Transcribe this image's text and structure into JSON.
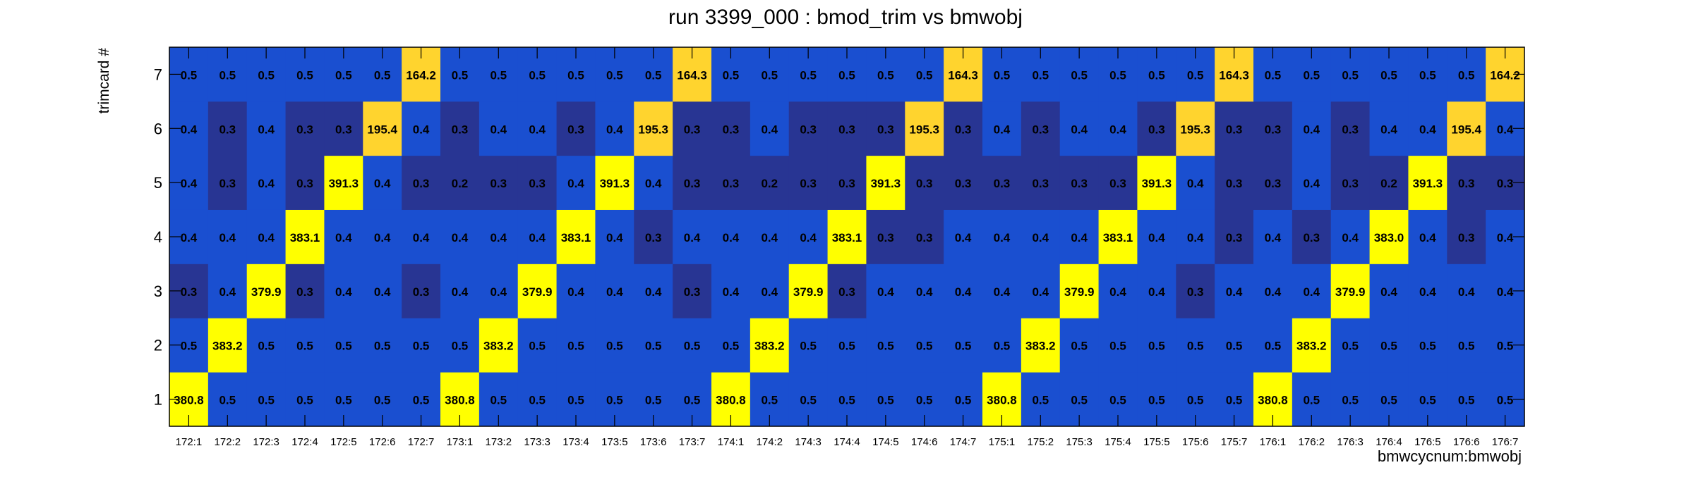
{
  "chart_data": {
    "type": "heatmap",
    "title": "run 3399_000 : bmod_trim vs bmwobj",
    "xlabel": "bmwcycnum:bmwobj",
    "ylabel": "trimcard #",
    "x_categories": [
      "172:1",
      "172:2",
      "172:3",
      "172:4",
      "172:5",
      "172:6",
      "172:7",
      "173:1",
      "173:2",
      "173:3",
      "173:4",
      "173:5",
      "173:6",
      "173:7",
      "174:1",
      "174:2",
      "174:3",
      "174:4",
      "174:5",
      "174:6",
      "174:7",
      "175:1",
      "175:2",
      "175:3",
      "175:4",
      "175:5",
      "175:6",
      "175:7",
      "176:1",
      "176:2",
      "176:3",
      "176:4",
      "176:5",
      "176:6",
      "176:7"
    ],
    "y_categories": [
      "1",
      "2",
      "3",
      "4",
      "5",
      "6",
      "7"
    ],
    "values": [
      [
        "380.8",
        "0.5",
        "0.5",
        "0.5",
        "0.5",
        "0.5",
        "0.5",
        "380.8",
        "0.5",
        "0.5",
        "0.5",
        "0.5",
        "0.5",
        "0.5",
        "380.8",
        "0.5",
        "0.5",
        "0.5",
        "0.5",
        "0.5",
        "0.5",
        "380.8",
        "0.5",
        "0.5",
        "0.5",
        "0.5",
        "0.5",
        "0.5",
        "380.8",
        "0.5",
        "0.5",
        "0.5",
        "0.5",
        "0.5",
        "0.5"
      ],
      [
        "0.5",
        "383.2",
        "0.5",
        "0.5",
        "0.5",
        "0.5",
        "0.5",
        "0.5",
        "383.2",
        "0.5",
        "0.5",
        "0.5",
        "0.5",
        "0.5",
        "0.5",
        "383.2",
        "0.5",
        "0.5",
        "0.5",
        "0.5",
        "0.5",
        "0.5",
        "383.2",
        "0.5",
        "0.5",
        "0.5",
        "0.5",
        "0.5",
        "0.5",
        "383.2",
        "0.5",
        "0.5",
        "0.5",
        "0.5",
        "0.5"
      ],
      [
        "0.3",
        "0.4",
        "379.9",
        "0.3",
        "0.4",
        "0.4",
        "0.3",
        "0.4",
        "0.4",
        "379.9",
        "0.4",
        "0.4",
        "0.4",
        "0.3",
        "0.4",
        "0.4",
        "379.9",
        "0.3",
        "0.4",
        "0.4",
        "0.4",
        "0.4",
        "0.4",
        "379.9",
        "0.4",
        "0.4",
        "0.3",
        "0.4",
        "0.4",
        "0.4",
        "379.9",
        "0.4",
        "0.4",
        "0.4",
        "0.4"
      ],
      [
        "0.4",
        "0.4",
        "0.4",
        "383.1",
        "0.4",
        "0.4",
        "0.4",
        "0.4",
        "0.4",
        "0.4",
        "383.1",
        "0.4",
        "0.3",
        "0.4",
        "0.4",
        "0.4",
        "0.4",
        "383.1",
        "0.3",
        "0.3",
        "0.4",
        "0.4",
        "0.4",
        "0.4",
        "383.1",
        "0.4",
        "0.4",
        "0.3",
        "0.4",
        "0.3",
        "0.4",
        "383.0",
        "0.4",
        "0.3",
        "0.4"
      ],
      [
        "0.4",
        "0.3",
        "0.4",
        "0.3",
        "391.3",
        "0.4",
        "0.3",
        "0.2",
        "0.3",
        "0.3",
        "0.4",
        "391.3",
        "0.4",
        "0.3",
        "0.3",
        "0.2",
        "0.3",
        "0.3",
        "391.3",
        "0.3",
        "0.3",
        "0.3",
        "0.3",
        "0.3",
        "0.3",
        "391.3",
        "0.4",
        "0.3",
        "0.3",
        "0.4",
        "0.3",
        "0.2",
        "391.3",
        "0.3",
        "0.3"
      ],
      [
        "0.4",
        "0.3",
        "0.4",
        "0.3",
        "0.3",
        "195.4",
        "0.4",
        "0.3",
        "0.4",
        "0.4",
        "0.3",
        "0.4",
        "195.3",
        "0.3",
        "0.3",
        "0.4",
        "0.3",
        "0.3",
        "0.3",
        "195.3",
        "0.3",
        "0.4",
        "0.3",
        "0.4",
        "0.4",
        "0.3",
        "195.3",
        "0.3",
        "0.3",
        "0.4",
        "0.3",
        "0.4",
        "0.4",
        "195.4",
        "0.4"
      ],
      [
        "0.5",
        "0.5",
        "0.5",
        "0.5",
        "0.5",
        "0.5",
        "164.2",
        "0.5",
        "0.5",
        "0.5",
        "0.5",
        "0.5",
        "0.5",
        "164.3",
        "0.5",
        "0.5",
        "0.5",
        "0.5",
        "0.5",
        "0.5",
        "164.3",
        "0.5",
        "0.5",
        "0.5",
        "0.5",
        "0.5",
        "0.5",
        "164.3",
        "0.5",
        "0.5",
        "0.5",
        "0.5",
        "0.5",
        "0.5",
        "164.2"
      ]
    ],
    "colors": {
      "low": "#283593",
      "mid": "#1a4fd0",
      "high": "#ffff00",
      "medium_high": "#ffd42e",
      "frame": "#000000",
      "text": "#000000"
    },
    "grid": false
  }
}
